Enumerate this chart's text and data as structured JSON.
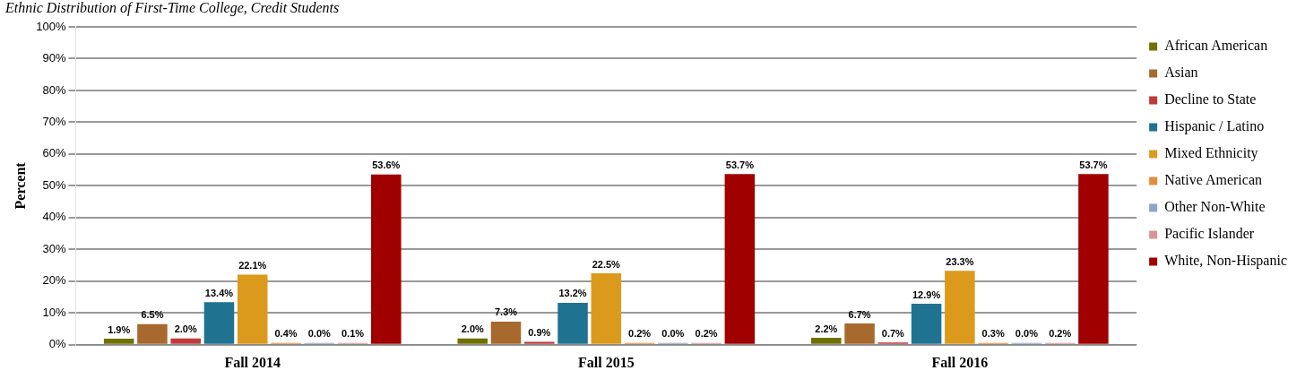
{
  "chart_data": {
    "type": "bar",
    "title": "Ethnic Distribution of First-Time College, Credit Students",
    "ylabel": "Percent",
    "categories": [
      "Fall 2014",
      "Fall 2015",
      "Fall 2016"
    ],
    "series": [
      {
        "name": "African American",
        "color": "#6f7000",
        "values": [
          1.9,
          2.0,
          2.2
        ],
        "value_labels": [
          "1.9%",
          "2.0%",
          "2.2%"
        ]
      },
      {
        "name": "Asian",
        "color": "#a8692e",
        "values": [
          6.5,
          7.3,
          6.7
        ],
        "value_labels": [
          "6.5%",
          "7.3%",
          "6.7%"
        ]
      },
      {
        "name": "Decline to State",
        "color": "#c03a3c",
        "values": [
          2.0,
          0.9,
          0.7
        ],
        "value_labels": [
          "2.0%",
          "0.9%",
          "0.7%"
        ]
      },
      {
        "name": "Hispanic / Latino",
        "color": "#1f7391",
        "values": [
          13.4,
          13.2,
          12.9
        ],
        "value_labels": [
          "13.4%",
          "13.2%",
          "12.9%"
        ]
      },
      {
        "name": "Mixed Ethnicity",
        "color": "#dc9a1c",
        "values": [
          22.1,
          22.5,
          23.3
        ],
        "value_labels": [
          "22.1%",
          "22.5%",
          "23.3%"
        ]
      },
      {
        "name": "Native American",
        "color": "#e58c3c",
        "values": [
          0.4,
          0.2,
          0.3
        ],
        "value_labels": [
          "0.4%",
          "0.2%",
          "0.3%"
        ]
      },
      {
        "name": "Other Non-White",
        "color": "#8ea4cf",
        "values": [
          0.0,
          0.0,
          0.0
        ],
        "value_labels": [
          "0.0%",
          "0.0%",
          "0.0%"
        ]
      },
      {
        "name": "Pacific Islander",
        "color": "#d99594",
        "values": [
          0.1,
          0.2,
          0.2
        ],
        "value_labels": [
          "0.1%",
          "0.2%",
          "0.2%"
        ]
      },
      {
        "name": "White, Non-Hispanic",
        "color": "#a00000",
        "values": [
          53.6,
          53.7,
          53.7
        ],
        "value_labels": [
          "53.6%",
          "53.7%",
          "53.7%"
        ]
      }
    ],
    "ylim": [
      0,
      100
    ],
    "yticks": [
      {
        "value": 0,
        "label": "0%"
      },
      {
        "value": 10,
        "label": "10%"
      },
      {
        "value": 20,
        "label": "20%"
      },
      {
        "value": 30,
        "label": "30%"
      },
      {
        "value": 40,
        "label": "40%"
      },
      {
        "value": 50,
        "label": "50%"
      },
      {
        "value": 60,
        "label": "60%"
      },
      {
        "value": 70,
        "label": "70%"
      },
      {
        "value": 80,
        "label": "80%"
      },
      {
        "value": 90,
        "label": "90%"
      },
      {
        "value": 100,
        "label": "100%"
      }
    ],
    "grid": "y",
    "legend": "right"
  }
}
